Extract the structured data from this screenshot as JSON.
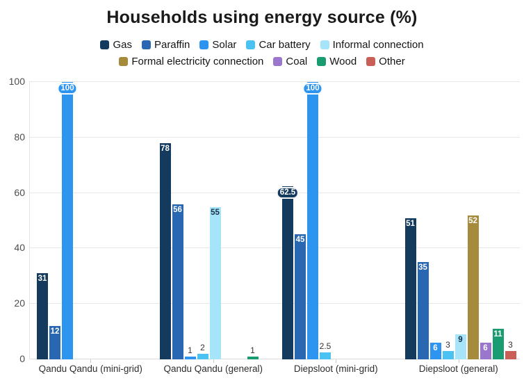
{
  "chart_data": {
    "type": "bar",
    "title": "Households using energy source (%)",
    "categories": [
      "Qandu Qandu (mini-grid)",
      "Qandu Qandu (general)",
      "Diepsloot (mini-grid)",
      "Diepsloot (general)"
    ],
    "series": [
      {
        "name": "Gas",
        "color": "#143A5E",
        "values": [
          31,
          78,
          62.5,
          51
        ]
      },
      {
        "name": "Paraffin",
        "color": "#2967B3",
        "values": [
          12,
          56,
          45,
          35
        ]
      },
      {
        "name": "Solar",
        "color": "#2D95F0",
        "values": [
          100,
          1,
          100,
          6
        ]
      },
      {
        "name": "Car battery",
        "color": "#4BC2F1",
        "values": [
          0,
          2,
          2.5,
          3
        ]
      },
      {
        "name": "Informal connection",
        "color": "#A5E4F9",
        "values": [
          0,
          55,
          0,
          9
        ]
      },
      {
        "name": "Formal electricity connection",
        "color": "#A78B3D",
        "values": [
          0,
          0,
          0,
          52
        ]
      },
      {
        "name": "Coal",
        "color": "#9A77CC",
        "values": [
          0,
          0,
          0,
          6
        ]
      },
      {
        "name": "Wood",
        "color": "#199C71",
        "values": [
          0,
          1,
          0,
          11
        ]
      },
      {
        "name": "Other",
        "color": "#C96057",
        "values": [
          0,
          0,
          0,
          3
        ]
      }
    ],
    "ylabel": "",
    "xlabel": "",
    "ylim": [
      0,
      100
    ],
    "yticks": [
      0,
      20,
      40,
      60,
      80,
      100
    ],
    "grid": "horizontal",
    "legend_position": "top"
  }
}
